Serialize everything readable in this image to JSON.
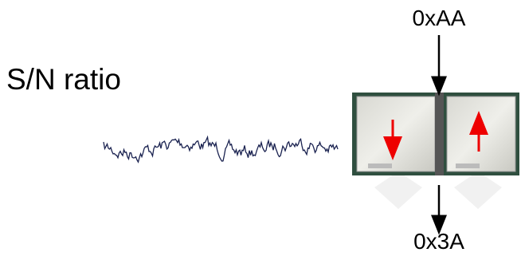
{
  "title": "S/N ratio",
  "labels": {
    "input": "0xAA",
    "output": "0x3A"
  }
}
